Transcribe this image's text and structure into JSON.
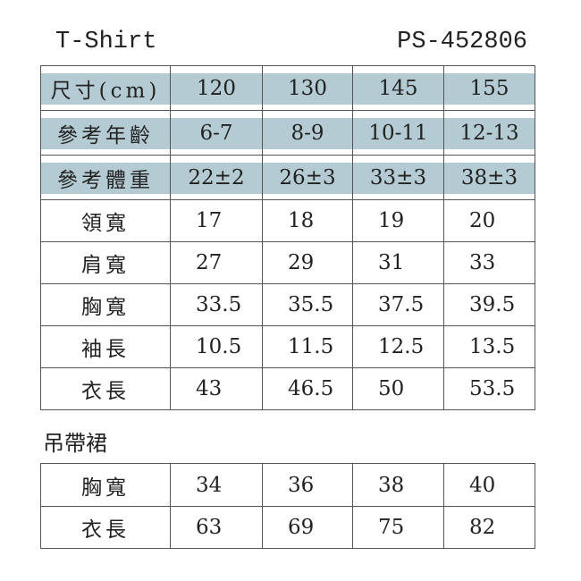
{
  "title": "T-Shirt",
  "code": "PS-452806",
  "header_color": "#b5cbd3",
  "header_rows": [
    {
      "label": "尺寸(cm)",
      "values": [
        "120",
        "130",
        "145",
        "155"
      ]
    },
    {
      "label": "參考年齡",
      "values": [
        "6-7",
        "8-9",
        "10-11",
        "12-13"
      ]
    },
    {
      "label": "參考體重",
      "values": [
        "22±2",
        "26±3",
        "33±3",
        "38±3"
      ]
    }
  ],
  "rows": [
    {
      "label": "領寬",
      "values": [
        "17",
        "18",
        "19",
        "20"
      ]
    },
    {
      "label": "肩寬",
      "values": [
        "27",
        "29",
        "31",
        "33"
      ]
    },
    {
      "label": "胸寬",
      "values": [
        "33.5",
        "35.5",
        "37.5",
        "39.5"
      ]
    },
    {
      "label": "袖長",
      "values": [
        "10.5",
        "11.5",
        "12.5",
        "13.5"
      ]
    },
    {
      "label": "衣長",
      "values": [
        "43",
        "46.5",
        "50",
        "53.5"
      ]
    }
  ],
  "section2": {
    "title": "吊帶裙",
    "rows": [
      {
        "label": "胸寬",
        "values": [
          "34",
          "36",
          "38",
          "40"
        ]
      },
      {
        "label": "衣長",
        "values": [
          "63",
          "69",
          "75",
          "82"
        ]
      }
    ]
  }
}
